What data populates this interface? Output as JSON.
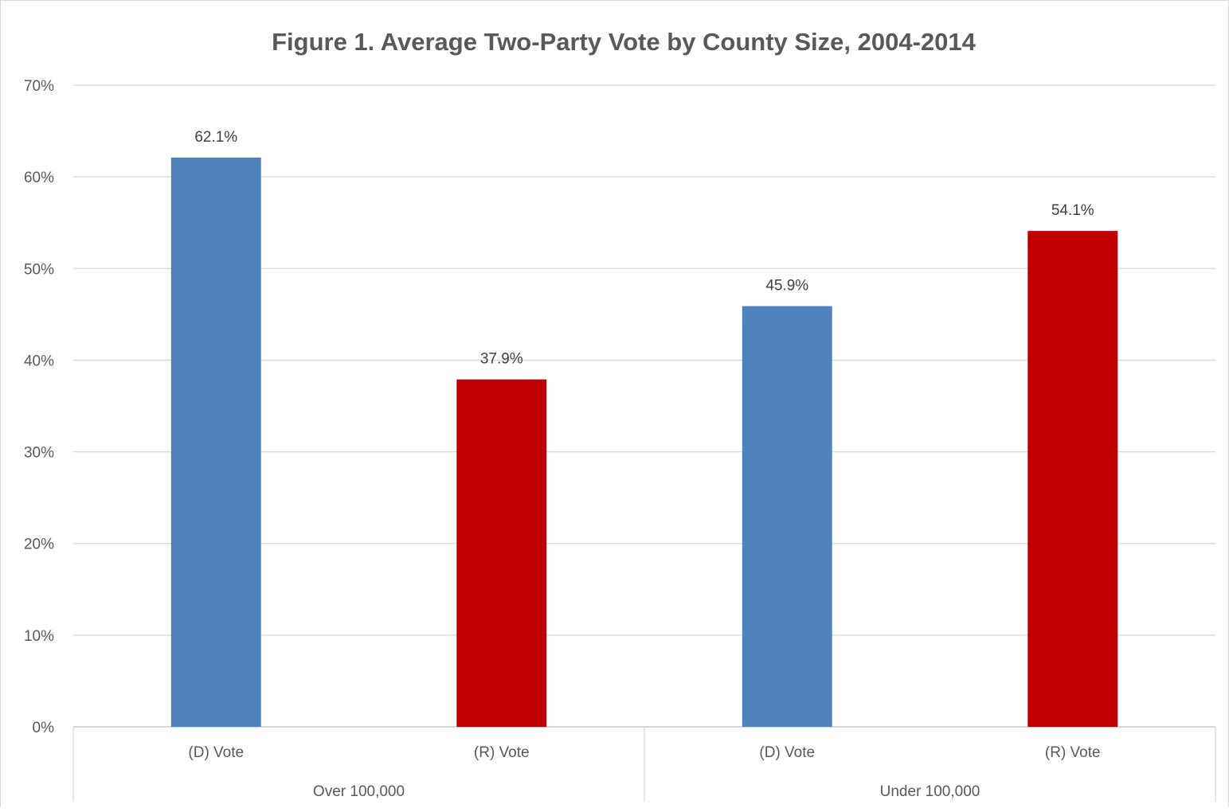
{
  "chart_data": {
    "type": "bar",
    "title": "Figure 1. Average Two-Party Vote by County Size, 2004-2014",
    "xlabel": "",
    "ylabel": "",
    "ylim": [
      0,
      70
    ],
    "y_ticks": [
      "0%",
      "10%",
      "20%",
      "30%",
      "40%",
      "50%",
      "60%",
      "70%"
    ],
    "grid": true,
    "legend": "none",
    "groups": [
      {
        "label": "Over 100,000",
        "bars": [
          {
            "category": "(D) Vote",
            "value": 62.1,
            "label": "62.1%",
            "color": "#4f81bd"
          },
          {
            "category": "(R) Vote",
            "value": 37.9,
            "label": "37.9%",
            "color": "#c00000"
          }
        ]
      },
      {
        "label": "Under 100,000",
        "bars": [
          {
            "category": "(D) Vote",
            "value": 45.9,
            "label": "45.9%",
            "color": "#4f81bd"
          },
          {
            "category": "(R) Vote",
            "value": 54.1,
            "label": "54.1%",
            "color": "#c00000"
          }
        ]
      }
    ]
  }
}
